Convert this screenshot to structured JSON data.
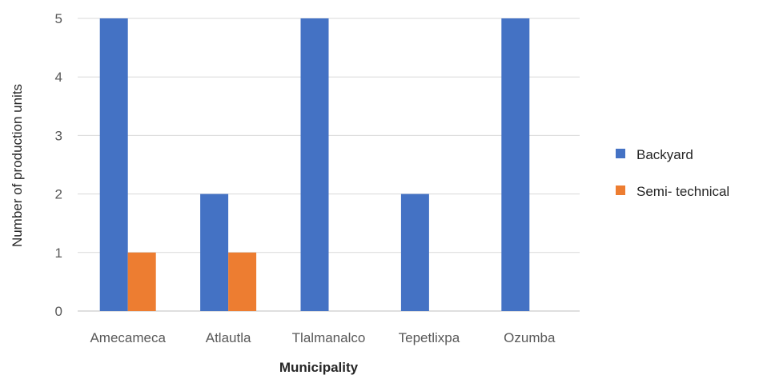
{
  "chart_data": {
    "type": "bar",
    "categories": [
      "Amecameca",
      "Atlautla",
      "Tlalmanalco",
      "Tepetlixpa",
      "Ozumba"
    ],
    "series": [
      {
        "name": "Backyard",
        "color": "#4472C4",
        "values": [
          5,
          2,
          5,
          2,
          5
        ]
      },
      {
        "name": "Semi- technical",
        "color": "#ED7D31",
        "values": [
          1,
          1,
          0,
          0,
          0
        ]
      }
    ],
    "xlabel": "Municipality",
    "ylabel": "Number of production units",
    "ylim": [
      0,
      5
    ],
    "yticks": [
      "0",
      "1",
      "2",
      "3",
      "4",
      "5"
    ],
    "grid": true,
    "legend_position": "right"
  }
}
